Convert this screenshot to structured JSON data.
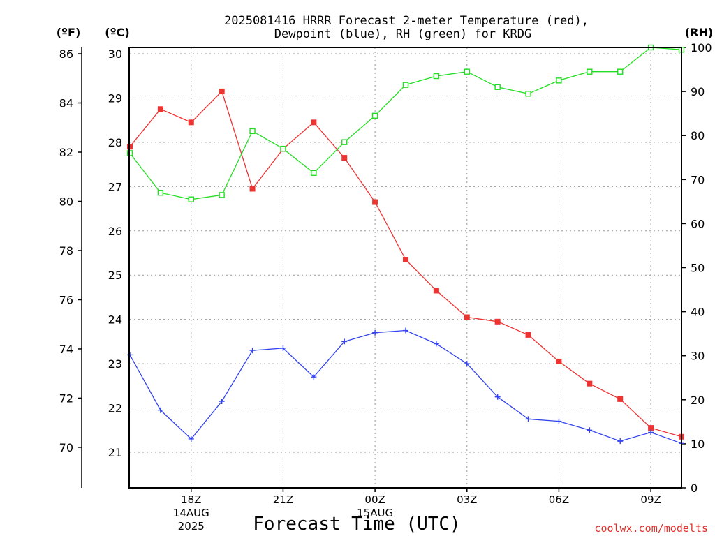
{
  "chart_data": {
    "type": "line",
    "title_line1": "2025081416 HRRR Forecast 2-meter Temperature (red),",
    "title_line2": "Dewpoint (blue), RH (green) for KRDG",
    "xlabel": "Forecast Time (UTC)",
    "credit": "coolwx.com/modelts",
    "units": {
      "fahrenheit": "(ºF)",
      "celsius": "(ºC)",
      "rh": "(RH)"
    },
    "x_hours": [
      16,
      17,
      18,
      19,
      20,
      21,
      22,
      23,
      24,
      25,
      26,
      27,
      28,
      29,
      30,
      31,
      32,
      33,
      34
    ],
    "x_ticks": [
      {
        "hour": 18,
        "lines": [
          "18Z",
          "14AUG",
          "2025"
        ]
      },
      {
        "hour": 21,
        "lines": [
          "21Z"
        ]
      },
      {
        "hour": 24,
        "lines": [
          "00Z",
          "15AUG"
        ]
      },
      {
        "hour": 27,
        "lines": [
          "03Z"
        ]
      },
      {
        "hour": 30,
        "lines": [
          "06Z"
        ]
      },
      {
        "hour": 33,
        "lines": [
          "09Z"
        ]
      }
    ],
    "xlim": [
      16,
      34
    ],
    "celsius_ticks": [
      "21",
      "22",
      "23",
      "24",
      "25",
      "26",
      "27",
      "28",
      "29",
      "30"
    ],
    "fahrenheit_ticks": [
      "70",
      "72",
      "74",
      "76",
      "78",
      "80",
      "82",
      "84",
      "86"
    ],
    "rh_ticks": [
      "0",
      "10",
      "20",
      "30",
      "40",
      "50",
      "60",
      "70",
      "80",
      "90",
      "100"
    ],
    "rh_lim": [
      0,
      100
    ],
    "series": [
      {
        "name": "Temperature",
        "color": "#ee3333",
        "marker": "square-filled",
        "axis": "celsius",
        "values": [
          27.9,
          28.75,
          28.45,
          29.15,
          26.95,
          27.85,
          28.45,
          27.65,
          26.65,
          25.35,
          24.65,
          24.05,
          23.95,
          23.65,
          23.05,
          22.55,
          22.2,
          21.55,
          21.35
        ]
      },
      {
        "name": "Dewpoint",
        "color": "#3344ee",
        "marker": "plus",
        "axis": "celsius",
        "values": [
          23.2,
          21.95,
          21.3,
          22.15,
          23.3,
          23.35,
          22.7,
          23.5,
          23.7,
          23.75,
          23.45,
          23.0,
          22.25,
          21.75,
          21.7,
          21.5,
          21.25,
          21.45,
          21.2
        ]
      },
      {
        "name": "RH",
        "color": "#22dd22",
        "marker": "square-open",
        "axis": "rh",
        "values": [
          76,
          67,
          65.5,
          66.5,
          81,
          77,
          71.5,
          78.5,
          84.5,
          91.5,
          93.5,
          94.5,
          91,
          89.5,
          92.5,
          94.5,
          94.5,
          100,
          99.5
        ]
      }
    ]
  }
}
